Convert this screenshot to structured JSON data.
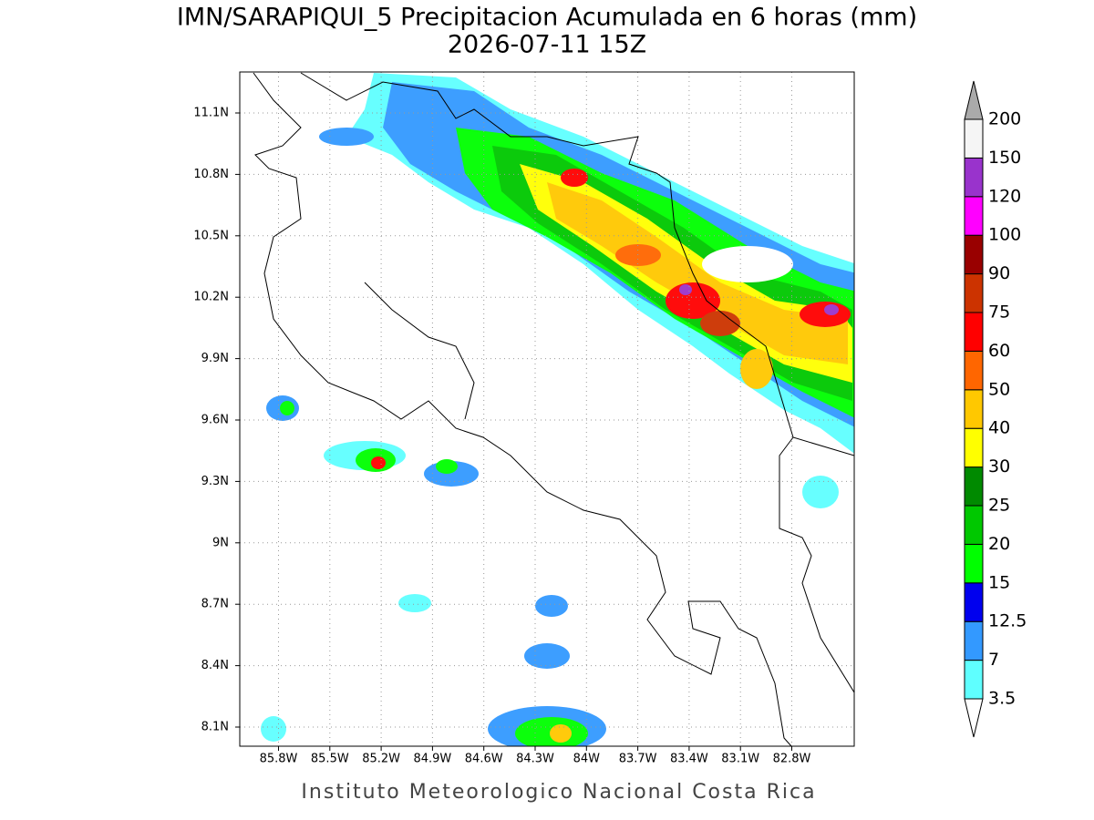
{
  "title": "IMN/SARAPIQUI_5 Precipitacion Acumulada en 6 horas (mm)",
  "subtitle": "2026-07-11 15Z",
  "map": {
    "lon_labels": [
      "85.8W",
      "85.5W",
      "85.2W",
      "84.9W",
      "84.6W",
      "84.3W",
      "84W",
      "83.7W",
      "83.4W",
      "83.1W",
      "82.8W"
    ],
    "lat_labels": [
      "11.1N",
      "10.8N",
      "10.5N",
      "10.2N",
      "9.9N",
      "9.6N",
      "9.3N",
      "9N",
      "8.7N",
      "8.4N",
      "8.1N"
    ]
  },
  "colorbar": {
    "labels": [
      "3.5",
      "7",
      "12.5",
      "15",
      "20",
      "25",
      "30",
      "40",
      "50",
      "60",
      "75",
      "90",
      "100",
      "120",
      "150",
      "200"
    ],
    "colors": [
      "#ffffff",
      "#5fffff",
      "#3399ff",
      "#0000ee",
      "#00ff00",
      "#00c800",
      "#008a00",
      "#ffff00",
      "#ffc800",
      "#ff6600",
      "#ff0000",
      "#cc3300",
      "#990000",
      "#ff00ff",
      "#9933cc",
      "#f5f5f5",
      "#aaaaaa"
    ]
  },
  "footer": "Instituto Meteorologico Nacional Costa Rica"
}
